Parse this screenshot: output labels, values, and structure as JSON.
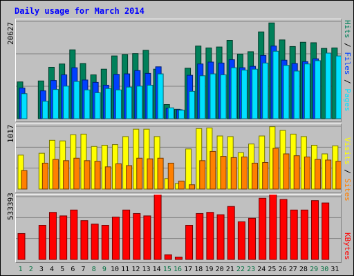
{
  "title": "Daily usage for March 2014",
  "colors": {
    "hits": "#00805a",
    "files": "#0040ff",
    "pages": "#00e0ff",
    "visits": "#ffff00",
    "sites": "#ff8000",
    "kbytes": "#ff0000",
    "weekday_label": "#000000",
    "weekend_label": "#007040"
  },
  "chart_data": [
    {
      "type": "bar",
      "name": "hits-files-pages",
      "y_tick_label": "20627",
      "ylim": [
        0,
        20627
      ],
      "categories": [
        "1",
        "2",
        "3",
        "4",
        "5",
        "6",
        "7",
        "8",
        "9",
        "10",
        "11",
        "12",
        "13",
        "14",
        "15",
        "16",
        "17",
        "18",
        "19",
        "20",
        "21",
        "22",
        "23",
        "24",
        "25",
        "26",
        "27",
        "28",
        "29",
        "30",
        "31"
      ],
      "legend": [
        {
          "label": "Hits",
          "color": "#00805a"
        },
        {
          "label": "Files",
          "color": "#0040ff"
        },
        {
          "label": "Pages",
          "color": "#00e0ff"
        }
      ],
      "series": [
        {
          "name": "Hits",
          "values": [
            7800,
            0,
            8000,
            10900,
            11600,
            14600,
            11700,
            9300,
            10500,
            13300,
            13600,
            13800,
            14500,
            10500,
            3000,
            2000,
            10700,
            15400,
            15000,
            15200,
            16600,
            13700,
            14200,
            18400,
            20300,
            16700,
            15300,
            16200,
            16100,
            14900,
            15000
          ]
        },
        {
          "name": "Files",
          "values": [
            6500,
            0,
            5900,
            8100,
            9300,
            10800,
            8200,
            7700,
            7100,
            9400,
            9500,
            10200,
            9600,
            11000,
            2200,
            1900,
            9200,
            11600,
            12000,
            11800,
            12500,
            10800,
            11100,
            13400,
            15400,
            12400,
            11700,
            12100,
            12700,
            0,
            0
          ]
        },
        {
          "name": "Pages",
          "values": [
            5300,
            0,
            3700,
            6200,
            6900,
            7900,
            6100,
            5500,
            6400,
            6100,
            6700,
            6900,
            7100,
            9500,
            2300,
            1800,
            5800,
            9100,
            9500,
            9300,
            10800,
            10300,
            10500,
            11800,
            14300,
            11300,
            10100,
            11600,
            12300,
            13900,
            13300
          ]
        }
      ]
    },
    {
      "type": "bar",
      "name": "visits-sites",
      "y_tick_label": "1017",
      "ylim": [
        0,
        1017
      ],
      "legend": [
        {
          "label": "Visits",
          "color": "#ffff00"
        },
        {
          "label": "Sites",
          "color": "#ff8000"
        }
      ],
      "series": [
        {
          "name": "Visits",
          "values": [
            550,
            0,
            580,
            790,
            780,
            880,
            890,
            690,
            710,
            720,
            850,
            970,
            970,
            850,
            170,
            90,
            650,
            980,
            990,
            860,
            850,
            590,
            730,
            860,
            1010,
            950,
            890,
            850,
            710,
            570,
            700
          ]
        },
        {
          "name": "Sites",
          "values": [
            300,
            0,
            420,
            480,
            460,
            500,
            460,
            450,
            360,
            410,
            380,
            500,
            490,
            500,
            420,
            130,
            70,
            460,
            610,
            530,
            510,
            520,
            420,
            430,
            660,
            570,
            540,
            520,
            480,
            470,
            450
          ]
        }
      ]
    },
    {
      "type": "bar",
      "name": "kbytes",
      "y_tick_label": "533393",
      "ylim": [
        0,
        533393
      ],
      "legend": [
        {
          "label": "KBytes",
          "color": "#ff0000"
        }
      ],
      "series": [
        {
          "name": "KBytes",
          "values": [
            220000,
            0,
            290000,
            400000,
            370000,
            420000,
            330000,
            300000,
            290000,
            360000,
            420000,
            390000,
            370000,
            560000,
            40000,
            20000,
            290000,
            390000,
            400000,
            380000,
            450000,
            320000,
            350000,
            520000,
            560000,
            510000,
            420000,
            420000,
            500000,
            480000,
            0
          ]
        }
      ]
    }
  ],
  "x_axis": {
    "labels": [
      "1",
      "2",
      "3",
      "4",
      "5",
      "6",
      "7",
      "8",
      "9",
      "10",
      "11",
      "12",
      "13",
      "14",
      "15",
      "16",
      "17",
      "18",
      "19",
      "20",
      "21",
      "22",
      "23",
      "24",
      "25",
      "26",
      "27",
      "28",
      "29",
      "30",
      "31"
    ],
    "weekend_days": [
      1,
      2,
      8,
      9,
      15,
      16,
      22,
      23,
      29,
      30
    ]
  }
}
